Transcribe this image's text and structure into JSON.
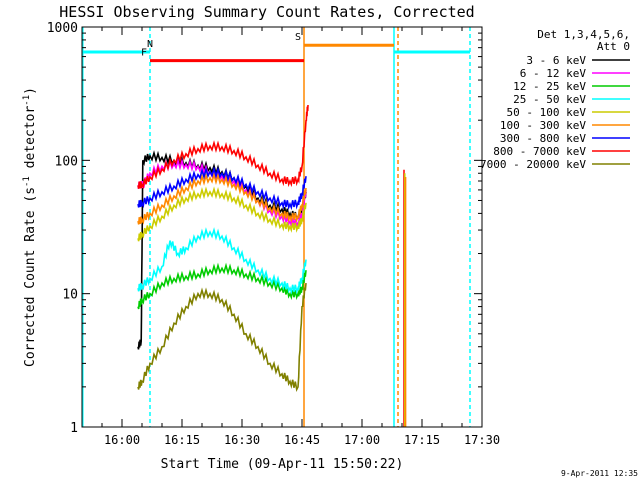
{
  "chart_data": {
    "type": "line",
    "title": "HESSI Observing Summary Count Rates, Corrected",
    "xlabel": "Start Time (09-Apr-11 15:50:22)",
    "ylabel_main": "Corrected Count Rate (s",
    "ylabel_sup1": "-1",
    "ylabel_mid": " detector",
    "ylabel_sup2": "-1",
    "ylabel_end": ")",
    "y_scale": "log",
    "ylim": [
      1,
      1000
    ],
    "xlim_minutes_after_1550": [
      0,
      100
    ],
    "x_ticks": [
      "16:00",
      "16:15",
      "16:30",
      "16:45",
      "17:00",
      "17:15",
      "17:30"
    ],
    "y_ticks": [
      "1",
      "10",
      "100",
      "1000"
    ],
    "date_stamp": "9-Apr-2011 12:35",
    "legend_header": [
      "Det 1,3,4,5,6,",
      "Att 0"
    ],
    "legend_position": "top-right",
    "series": [
      {
        "name": "3 - 6 keV",
        "color": "#000000",
        "points": [
          [
            14,
            4
          ],
          [
            14.8,
            4.4
          ],
          [
            15.2,
            100
          ],
          [
            17,
            108
          ],
          [
            20,
            105
          ],
          [
            23,
            100
          ],
          [
            26,
            96
          ],
          [
            29,
            92
          ],
          [
            32,
            88
          ],
          [
            35,
            82
          ],
          [
            38,
            74
          ],
          [
            41,
            64
          ],
          [
            44,
            52
          ],
          [
            47,
            46
          ],
          [
            50,
            43
          ],
          [
            52,
            40
          ],
          [
            54,
            38
          ],
          [
            55,
            44
          ],
          [
            56,
            58
          ]
        ]
      },
      {
        "name": "6 - 12 keV",
        "color": "#ff00ff",
        "points": [
          [
            14,
            65
          ],
          [
            14.8,
            66
          ],
          [
            15.2,
            66
          ],
          [
            17,
            80
          ],
          [
            20,
            90
          ],
          [
            23,
            94
          ],
          [
            26,
            93
          ],
          [
            29,
            90
          ],
          [
            32,
            82
          ],
          [
            35,
            76
          ],
          [
            38,
            70
          ],
          [
            41,
            60
          ],
          [
            44,
            50
          ],
          [
            47,
            42
          ],
          [
            50,
            38
          ],
          [
            52,
            35
          ],
          [
            54,
            34
          ],
          [
            55,
            40
          ],
          [
            56,
            60
          ]
        ]
      },
      {
        "name": "12 - 25 keV",
        "color": "#00cc00",
        "points": [
          [
            14,
            8
          ],
          [
            15,
            9
          ],
          [
            17,
            10
          ],
          [
            20,
            12
          ],
          [
            23,
            13
          ],
          [
            26,
            13.5
          ],
          [
            29,
            14
          ],
          [
            32,
            15
          ],
          [
            35,
            15.5
          ],
          [
            38,
            15
          ],
          [
            41,
            14
          ],
          [
            44,
            13
          ],
          [
            47,
            12
          ],
          [
            50,
            11
          ],
          [
            52,
            10
          ],
          [
            54,
            10
          ],
          [
            55,
            11
          ],
          [
            56,
            15
          ]
        ]
      },
      {
        "name": "25 - 50 keV",
        "color": "#00ffff",
        "points": [
          [
            14,
            11
          ],
          [
            15,
            11.5
          ],
          [
            17,
            13
          ],
          [
            20,
            16
          ],
          [
            22,
            25
          ],
          [
            24,
            20
          ],
          [
            26,
            22
          ],
          [
            29,
            27
          ],
          [
            32,
            29
          ],
          [
            35,
            27
          ],
          [
            38,
            22
          ],
          [
            41,
            18
          ],
          [
            44,
            15
          ],
          [
            47,
            13
          ],
          [
            50,
            12
          ],
          [
            52,
            11
          ],
          [
            54,
            11
          ],
          [
            55,
            13
          ],
          [
            56,
            18
          ]
        ]
      },
      {
        "name": "50 - 100 keV",
        "color": "#cccc00",
        "points": [
          [
            14,
            26
          ],
          [
            15,
            28
          ],
          [
            17,
            32
          ],
          [
            20,
            38
          ],
          [
            23,
            46
          ],
          [
            26,
            52
          ],
          [
            29,
            56
          ],
          [
            32,
            58
          ],
          [
            35,
            56
          ],
          [
            38,
            52
          ],
          [
            41,
            46
          ],
          [
            44,
            40
          ],
          [
            47,
            36
          ],
          [
            50,
            33
          ],
          [
            52,
            32
          ],
          [
            54,
            32
          ],
          [
            55,
            36
          ],
          [
            56,
            48
          ]
        ]
      },
      {
        "name": "100 - 300 keV",
        "color": "#ff8800",
        "points": [
          [
            14,
            35
          ],
          [
            15,
            36
          ],
          [
            17,
            40
          ],
          [
            20,
            46
          ],
          [
            23,
            54
          ],
          [
            26,
            62
          ],
          [
            29,
            70
          ],
          [
            32,
            74
          ],
          [
            35,
            72
          ],
          [
            38,
            66
          ],
          [
            41,
            58
          ],
          [
            44,
            50
          ],
          [
            47,
            44
          ],
          [
            50,
            40
          ],
          [
            52,
            38
          ],
          [
            54,
            38
          ],
          [
            55,
            46
          ],
          [
            56,
            62
          ]
        ]
      },
      {
        "name": "300 - 800 keV",
        "color": "#0000ff",
        "points": [
          [
            14,
            47
          ],
          [
            15,
            48
          ],
          [
            17,
            52
          ],
          [
            20,
            58
          ],
          [
            23,
            64
          ],
          [
            26,
            72
          ],
          [
            29,
            78
          ],
          [
            32,
            82
          ],
          [
            35,
            80
          ],
          [
            38,
            74
          ],
          [
            41,
            66
          ],
          [
            44,
            58
          ],
          [
            47,
            52
          ],
          [
            50,
            48
          ],
          [
            52,
            47
          ],
          [
            54,
            48
          ],
          [
            55,
            56
          ],
          [
            56,
            76
          ]
        ]
      },
      {
        "name": "800 - 7000 keV",
        "color": "#ff0000",
        "points": [
          [
            14,
            65
          ],
          [
            15,
            66
          ],
          [
            17,
            75
          ],
          [
            20,
            86
          ],
          [
            23,
            100
          ],
          [
            26,
            112
          ],
          [
            29,
            122
          ],
          [
            32,
            128
          ],
          [
            35,
            126
          ],
          [
            38,
            118
          ],
          [
            41,
            106
          ],
          [
            44,
            92
          ],
          [
            47,
            80
          ],
          [
            50,
            72
          ],
          [
            52,
            70
          ],
          [
            54,
            72
          ],
          [
            55,
            90
          ],
          [
            56,
            200
          ],
          [
            56.5,
            260
          ]
        ]
      },
      {
        "name": "7000 - 20000 keV",
        "color": "#808000",
        "points": [
          [
            14,
            2
          ],
          [
            15,
            2.2
          ],
          [
            17,
            3
          ],
          [
            20,
            4
          ],
          [
            23,
            6
          ],
          [
            26,
            8
          ],
          [
            29,
            10
          ],
          [
            32,
            10
          ],
          [
            35,
            9
          ],
          [
            38,
            7
          ],
          [
            41,
            5
          ],
          [
            44,
            4
          ],
          [
            47,
            3
          ],
          [
            50,
            2.5
          ],
          [
            52,
            2.2
          ],
          [
            54,
            2
          ],
          [
            55,
            8
          ],
          [
            56,
            12
          ]
        ]
      }
    ],
    "late_spikes": [
      {
        "color": "#ff0000",
        "x": 80.5,
        "low": 1,
        "high": 85
      },
      {
        "color": "#cccc00",
        "x": 80.7,
        "low": 1,
        "high": 80
      },
      {
        "color": "#ff8800",
        "x": 80.9,
        "low": 1,
        "high": 75
      }
    ],
    "state_bars": [
      {
        "label": "",
        "color": "#00ffff",
        "y": 650,
        "x0": 0,
        "x1": 17
      },
      {
        "label": "N",
        "color": "#00ffff",
        "y": 650,
        "x0": 17,
        "x1": 17
      },
      {
        "label": "F",
        "color": "#ff0000",
        "y": 560,
        "x0": 17,
        "x1": 55.5
      },
      {
        "label": "S",
        "color": "#ff8800",
        "y": 730,
        "x0": 55.5,
        "x1": 78
      },
      {
        "label": "",
        "color": "#00ffff",
        "y": 650,
        "x0": 78,
        "x1": 97
      }
    ],
    "vertical_markers": [
      {
        "x": 0.2,
        "color": "#00ffff",
        "dashed": false
      },
      {
        "x": 17,
        "color": "#00ffff",
        "dashed": true
      },
      {
        "x": 55.5,
        "color": "#ff8800",
        "dashed": false
      },
      {
        "x": 78,
        "color": "#00ffff",
        "dashed": false
      },
      {
        "x": 79,
        "color": "#ff8800",
        "dashed": true
      },
      {
        "x": 97,
        "color": "#00ffff",
        "dashed": true
      }
    ]
  }
}
